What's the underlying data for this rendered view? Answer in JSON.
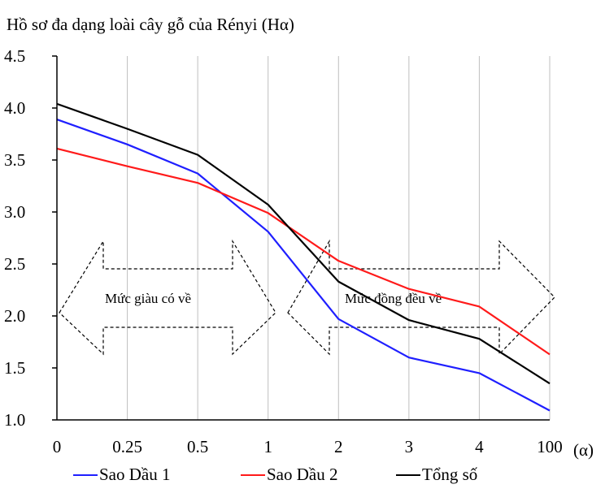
{
  "chart_data": {
    "type": "line",
    "title": "Hồ sơ đa dạng loài cây gỗ của Rényi (Hα)",
    "xlabel": "(α)",
    "ylabel": "",
    "categories": [
      "0",
      "0.25",
      "0.5",
      "1",
      "2",
      "3",
      "4",
      "100"
    ],
    "yticks": [
      "1.0",
      "1.5",
      "2.0",
      "2.5",
      "3.0",
      "3.5",
      "4.0",
      "4.5"
    ],
    "ylim": [
      1.0,
      4.5
    ],
    "grid": "vertical",
    "legend_position": "bottom",
    "series": [
      {
        "name": "Sao Dầu 1",
        "color": "#1f1fff",
        "values": [
          3.89,
          3.65,
          3.37,
          2.81,
          1.97,
          1.6,
          1.45,
          1.09
        ]
      },
      {
        "name": "Sao Dầu 2",
        "color": "#ff1a1a",
        "values": [
          3.61,
          3.44,
          3.28,
          2.99,
          2.53,
          2.26,
          2.09,
          1.63
        ]
      },
      {
        "name": "Tổng số",
        "color": "#000000",
        "values": [
          4.04,
          3.8,
          3.55,
          3.07,
          2.33,
          1.96,
          1.78,
          1.35
        ]
      }
    ],
    "annotations": [
      "Mức giàu có về",
      "Mức đồng đều về"
    ]
  }
}
